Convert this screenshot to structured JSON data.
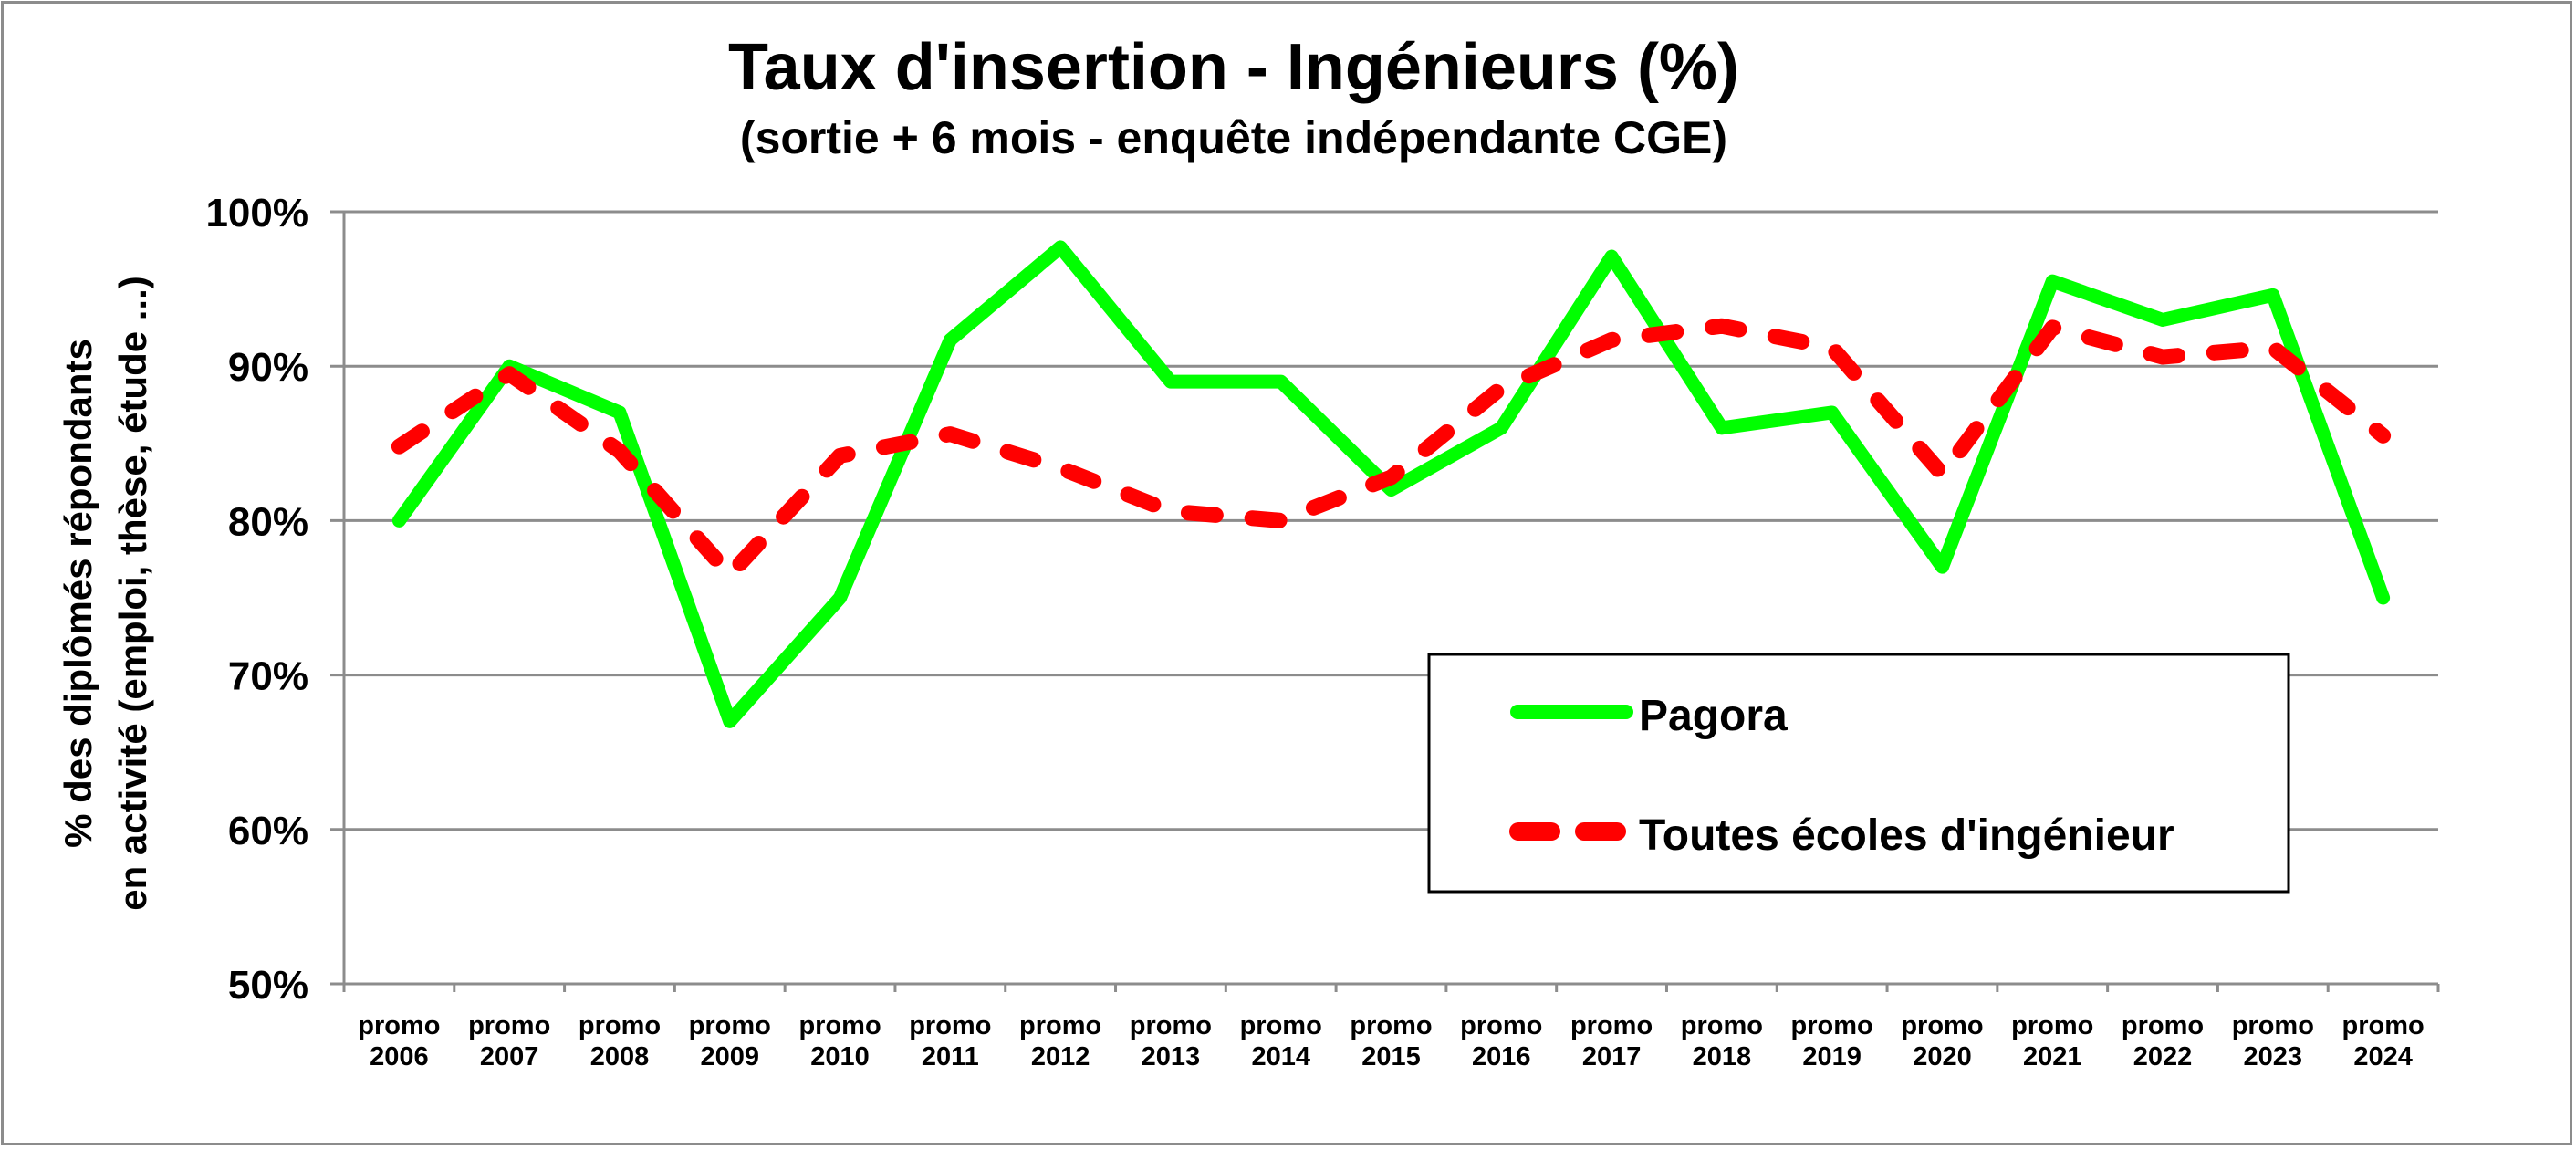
{
  "chart_data": {
    "type": "line",
    "title": "Taux d'insertion - Ingénieurs (%)",
    "subtitle": "(sortie + 6 mois - enquête indépendante CGE)",
    "xlabel": "",
    "ylabel": [
      "% des diplômés répondants",
      "en activité (emploi, thèse, étude ...)"
    ],
    "ylim": [
      50,
      100
    ],
    "y_ticks": [
      "50%",
      "60%",
      "70%",
      "80%",
      "90%",
      "100%"
    ],
    "grid": true,
    "legend_position": "inside-lower-right",
    "categories": [
      [
        "promo",
        "2006"
      ],
      [
        "promo",
        "2007"
      ],
      [
        "promo",
        "2008"
      ],
      [
        "promo",
        "2009"
      ],
      [
        "promo",
        "2010"
      ],
      [
        "promo",
        "2011"
      ],
      [
        "promo",
        "2012"
      ],
      [
        "promo",
        "2013"
      ],
      [
        "promo",
        "2014"
      ],
      [
        "promo",
        "2015"
      ],
      [
        "promo",
        "2016"
      ],
      [
        "promo",
        "2017"
      ],
      [
        "promo",
        "2018"
      ],
      [
        "promo",
        "2019"
      ],
      [
        "promo",
        "2020"
      ],
      [
        "promo",
        "2021"
      ],
      [
        "promo",
        "2022"
      ],
      [
        "promo",
        "2023"
      ],
      [
        "promo",
        "2024"
      ]
    ],
    "series": [
      {
        "name": "Pagora",
        "color": "#00ff00",
        "style": "solid",
        "values": [
          80,
          90,
          87,
          67,
          75,
          91.7,
          97.7,
          89,
          89,
          82,
          86,
          97.1,
          86,
          87,
          77,
          95.5,
          93,
          94.6,
          75
        ]
      },
      {
        "name": "Toutes écoles d'ingénieur",
        "color": "#ff0000",
        "style": "dashed",
        "values": [
          84.8,
          89.5,
          84.5,
          76.5,
          84.2,
          85.6,
          83.4,
          80.6,
          80,
          82.8,
          88.6,
          91.7,
          92.6,
          91.2,
          83,
          92.5,
          90.6,
          91.2,
          85.5
        ]
      }
    ]
  },
  "colors": {
    "gridline": "#8c8c8c",
    "axis": "#8c8c8c",
    "frame": "#8c8c8c"
  }
}
